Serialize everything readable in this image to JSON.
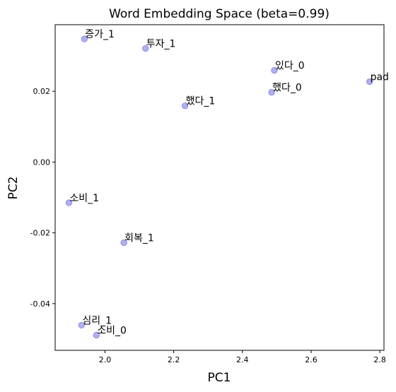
{
  "chart_data": {
    "type": "scatter",
    "title": "Word Embedding Space (beta=0.99)",
    "xlabel": "PC1",
    "ylabel": "PC2",
    "xlim": [
      1.855,
      2.812
    ],
    "ylim": [
      -0.0532,
      0.0388
    ],
    "x_ticks": [
      2.0,
      2.2,
      2.4,
      2.6,
      2.8
    ],
    "x_tick_labels": [
      "2.0",
      "2.2",
      "2.4",
      "2.6",
      "2.8"
    ],
    "y_ticks": [
      -0.04,
      -0.02,
      0.0,
      0.02
    ],
    "y_tick_labels": [
      "-0.04",
      "-0.02",
      "0.00",
      "0.02"
    ],
    "grid": false,
    "point_color": "#9b9bf0",
    "point_edge_color": "#7f7fe6",
    "points": [
      {
        "label": "증가_1",
        "x": 1.94,
        "y": 0.0348
      },
      {
        "label": "투자_1",
        "x": 2.118,
        "y": 0.0321
      },
      {
        "label": "있다_0",
        "x": 2.493,
        "y": 0.0259
      },
      {
        "label": "pad",
        "x": 2.77,
        "y": 0.0227
      },
      {
        "label": "했다_0",
        "x": 2.485,
        "y": 0.0197
      },
      {
        "label": "했다_1",
        "x": 2.233,
        "y": 0.0159
      },
      {
        "label": "소비_1",
        "x": 1.895,
        "y": -0.0115
      },
      {
        "label": "회복_1",
        "x": 2.055,
        "y": -0.0228
      },
      {
        "label": "심리_1",
        "x": 1.932,
        "y": -0.0461
      },
      {
        "label": "소비_0",
        "x": 1.975,
        "y": -0.0489
      }
    ]
  }
}
